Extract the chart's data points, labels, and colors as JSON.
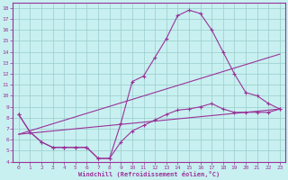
{
  "xlabel": "Windchill (Refroidissement éolien,°C)",
  "background_color": "#c8f0f0",
  "line_color": "#993399",
  "grid_color": "#99cccc",
  "xlim": [
    -0.5,
    23.5
  ],
  "ylim": [
    4,
    18.5
  ],
  "xticks": [
    0,
    1,
    2,
    3,
    4,
    5,
    6,
    7,
    8,
    9,
    10,
    11,
    12,
    13,
    14,
    15,
    16,
    17,
    18,
    19,
    20,
    21,
    22,
    23
  ],
  "yticks": [
    4,
    5,
    6,
    7,
    8,
    9,
    10,
    11,
    12,
    13,
    14,
    15,
    16,
    17,
    18
  ],
  "series": [
    {
      "x": [
        0,
        1,
        2,
        3,
        4,
        5,
        6,
        7,
        8,
        9,
        10,
        11,
        12,
        13,
        14,
        15,
        16,
        17,
        18,
        19,
        20,
        21,
        22,
        23
      ],
      "y": [
        8.3,
        6.7,
        5.8,
        5.3,
        5.3,
        5.3,
        5.3,
        4.3,
        4.3,
        7.5,
        11.3,
        11.8,
        13.5,
        15.2,
        17.3,
        17.8,
        17.5,
        16.0,
        14.0,
        12.0,
        10.3,
        10.0,
        9.3,
        8.8
      ],
      "marker": true
    },
    {
      "x": [
        0,
        1,
        2,
        3,
        4,
        5,
        6,
        7,
        8,
        9,
        10,
        11,
        12,
        13,
        14,
        15,
        16,
        17,
        18,
        19,
        20,
        21,
        22,
        23
      ],
      "y": [
        8.3,
        6.7,
        5.8,
        5.3,
        5.3,
        5.3,
        5.3,
        4.3,
        4.3,
        5.8,
        6.8,
        7.3,
        7.8,
        8.3,
        8.7,
        8.8,
        9.0,
        9.3,
        8.8,
        8.5,
        8.5,
        8.5,
        8.5,
        8.8
      ],
      "marker": true
    },
    {
      "x": [
        0,
        23
      ],
      "y": [
        6.5,
        13.8
      ],
      "marker": false
    },
    {
      "x": [
        0,
        23
      ],
      "y": [
        6.5,
        8.8
      ],
      "marker": false
    }
  ]
}
